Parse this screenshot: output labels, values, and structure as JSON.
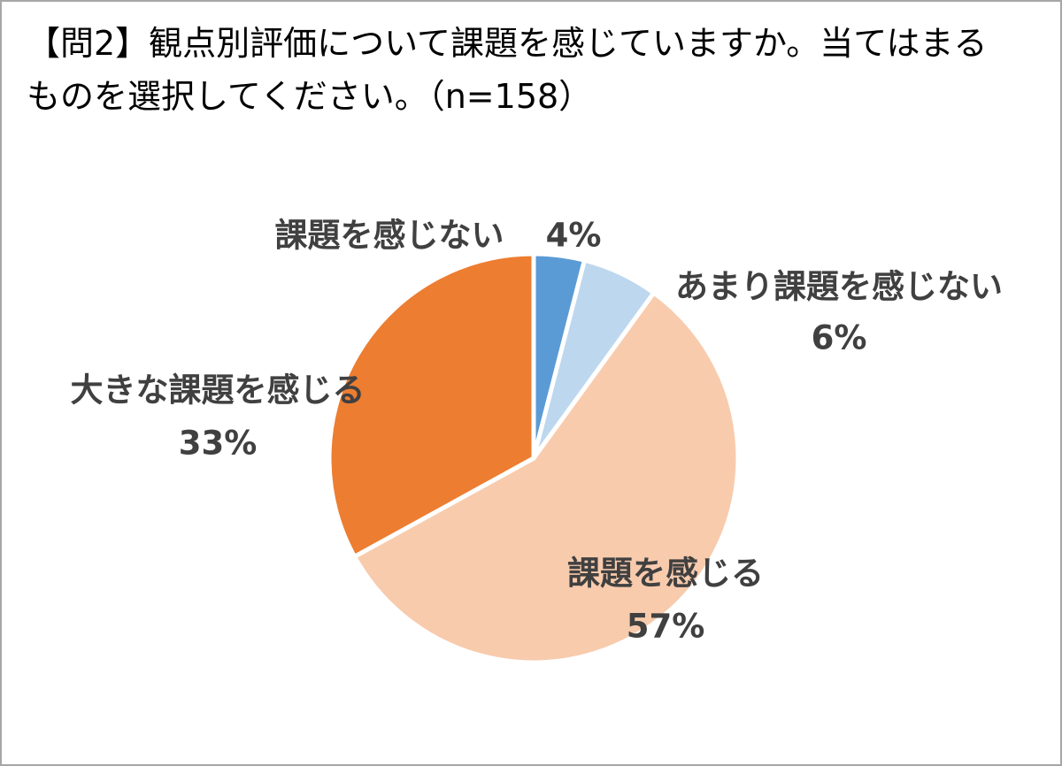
{
  "chart_data": {
    "type": "pie",
    "title": [
      "【問2】観点別評価について課題を感じていますか。当てはまる",
      "ものを選択してください。（n=158）"
    ],
    "categories": [
      "課題を感じない",
      "あまり課題を感じない",
      "課題を感じる",
      "大きな課題を感じる"
    ],
    "values": [
      4,
      6,
      57,
      33
    ],
    "value_labels": [
      "4%",
      "6%",
      "57%",
      "33%"
    ],
    "colors": [
      "#5b9bd5",
      "#bdd7ee",
      "#f8cbad",
      "#ed7d31"
    ]
  }
}
